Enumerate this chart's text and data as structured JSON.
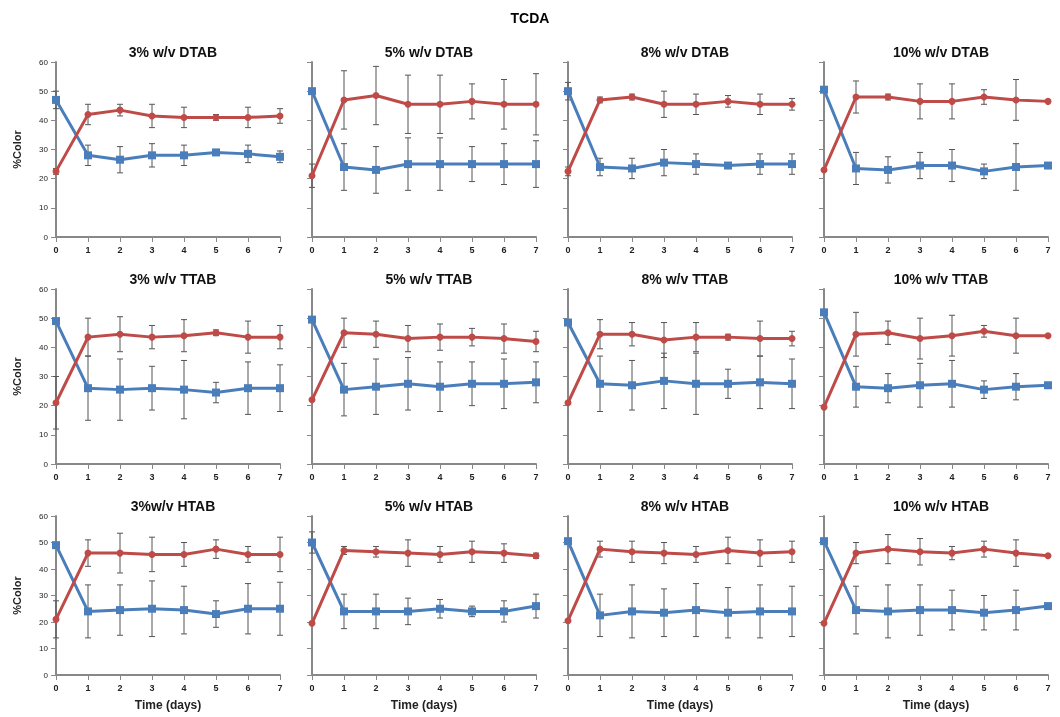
{
  "chart_data": [
    {
      "type": "other",
      "title": "TCDA"
    },
    {
      "type": "line",
      "title": "3% w/v DTAB",
      "ylabel": "%Color",
      "x": [
        0,
        1,
        2,
        3,
        4,
        5,
        6,
        7
      ],
      "xlim": [
        0,
        7
      ],
      "xticks": [
        0,
        1,
        2,
        3,
        4,
        5,
        6,
        7
      ],
      "ylim": [
        0,
        60
      ],
      "yticks": [
        0,
        10,
        20,
        30,
        40,
        50,
        60
      ],
      "series": [
        {
          "color": "#4a7ebb",
          "marker": "square",
          "values": [
            47,
            28,
            26.5,
            28,
            28,
            29,
            28.5,
            27.5
          ],
          "errors": [
            3,
            3.5,
            4.5,
            4,
            3.5,
            null,
            3,
            2
          ]
        },
        {
          "color": "#be4b48",
          "marker": "circle",
          "values": [
            22.5,
            42,
            43.5,
            41.5,
            41,
            41,
            41,
            41.5
          ],
          "errors": [
            1,
            3.5,
            2,
            4,
            3.5,
            1,
            3.5,
            2.5
          ]
        }
      ]
    },
    {
      "type": "line",
      "title": "5% w/v DTAB",
      "x": [
        0,
        1,
        2,
        3,
        4,
        5,
        6,
        7
      ],
      "xlim": [
        0,
        7
      ],
      "xticks": [
        0,
        1,
        2,
        3,
        4,
        5,
        6,
        7
      ],
      "ylim": [
        0,
        60
      ],
      "yticks": [
        0,
        10,
        20,
        30,
        40,
        50,
        60
      ],
      "tick_labels": "x",
      "series": [
        {
          "color": "#4a7ebb",
          "marker": "square",
          "values": [
            50,
            24,
            23,
            25,
            25,
            25,
            25,
            25
          ],
          "errors": [
            null,
            8,
            8,
            9,
            9,
            6,
            7,
            8
          ]
        },
        {
          "color": "#be4b48",
          "marker": "circle",
          "values": [
            21,
            47,
            48.5,
            45.5,
            45.5,
            46.5,
            45.5,
            45.5
          ],
          "errors": [
            4,
            10,
            10,
            10,
            10,
            6,
            8.5,
            10.5
          ]
        }
      ]
    },
    {
      "type": "line",
      "title": "8% w/v DTAB",
      "x": [
        0,
        1,
        2,
        3,
        4,
        5,
        6,
        7
      ],
      "xlim": [
        0,
        7
      ],
      "xticks": [
        0,
        1,
        2,
        3,
        4,
        5,
        6,
        7
      ],
      "ylim": [
        0,
        60
      ],
      "yticks": [
        0,
        10,
        20,
        30,
        40,
        50,
        60
      ],
      "tick_labels": "x",
      "series": [
        {
          "color": "#4a7ebb",
          "marker": "square",
          "values": [
            50,
            24,
            23.5,
            25.5,
            25,
            24.5,
            25,
            25
          ],
          "errors": [
            3,
            3,
            3.5,
            4.5,
            3.5,
            null,
            3.5,
            3.5
          ]
        },
        {
          "color": "#be4b48",
          "marker": "circle",
          "values": [
            22.5,
            47,
            48,
            45.5,
            45.5,
            46.5,
            45.5,
            45.5
          ],
          "errors": [
            1.5,
            1,
            1,
            4.5,
            3.5,
            2,
            3.5,
            2
          ]
        }
      ]
    },
    {
      "type": "line",
      "title": "10% w/v DTAB",
      "x": [
        0,
        1,
        2,
        3,
        4,
        5,
        6,
        7
      ],
      "xlim": [
        0,
        7
      ],
      "xticks": [
        0,
        1,
        2,
        3,
        4,
        5,
        6,
        7
      ],
      "ylim": [
        0,
        60
      ],
      "yticks": [
        0,
        10,
        20,
        30,
        40,
        50,
        60
      ],
      "tick_labels": "x",
      "series": [
        {
          "color": "#4a7ebb",
          "marker": "square",
          "values": [
            50.5,
            23.5,
            23,
            24.5,
            24.5,
            22.5,
            24,
            24.5
          ],
          "errors": [
            null,
            5.5,
            4.5,
            4.5,
            5.5,
            2.5,
            8,
            null
          ]
        },
        {
          "color": "#be4b48",
          "marker": "circle",
          "values": [
            23,
            48,
            48,
            46.5,
            46.5,
            48,
            47,
            46.5
          ],
          "errors": [
            null,
            5.5,
            1,
            6,
            6,
            2.5,
            7,
            null
          ]
        }
      ]
    },
    {
      "type": "line",
      "title": "3% w/v TTAB",
      "ylabel": "%Color",
      "x": [
        0,
        1,
        2,
        3,
        4,
        5,
        6,
        7
      ],
      "xlim": [
        0,
        7
      ],
      "xticks": [
        0,
        1,
        2,
        3,
        4,
        5,
        6,
        7
      ],
      "ylim": [
        0,
        60
      ],
      "yticks": [
        0,
        10,
        20,
        30,
        40,
        50,
        60
      ],
      "series": [
        {
          "color": "#4a7ebb",
          "marker": "square",
          "values": [
            49,
            26,
            25.5,
            26,
            25.5,
            24.5,
            26,
            26
          ],
          "errors": [
            null,
            11,
            10.5,
            7.5,
            10,
            3.5,
            9,
            8
          ]
        },
        {
          "color": "#be4b48",
          "marker": "circle",
          "values": [
            21,
            43.5,
            44.5,
            43.5,
            44,
            45,
            43.5,
            43.5
          ],
          "errors": [
            9,
            6.5,
            6,
            4,
            5.5,
            1,
            5.5,
            4
          ]
        }
      ]
    },
    {
      "type": "line",
      "title": "5% w/v TTAB",
      "x": [
        0,
        1,
        2,
        3,
        4,
        5,
        6,
        7
      ],
      "xlim": [
        0,
        7
      ],
      "xticks": [
        0,
        1,
        2,
        3,
        4,
        5,
        6,
        7
      ],
      "ylim": [
        0,
        60
      ],
      "yticks": [
        0,
        10,
        20,
        30,
        40,
        50,
        60
      ],
      "tick_labels": "x",
      "series": [
        {
          "color": "#4a7ebb",
          "marker": "square",
          "values": [
            49.5,
            25.5,
            26.5,
            27.5,
            26.5,
            27.5,
            27.5,
            28
          ],
          "errors": [
            null,
            9,
            9.5,
            9,
            8.5,
            7.5,
            8.5,
            7
          ]
        },
        {
          "color": "#be4b48",
          "marker": "circle",
          "values": [
            22,
            45,
            44.5,
            43,
            43.5,
            43.5,
            43,
            42
          ],
          "errors": [
            null,
            5,
            4.5,
            4.5,
            4.5,
            3,
            5,
            3.5
          ]
        }
      ]
    },
    {
      "type": "line",
      "title": "8% w/v TTAB",
      "x": [
        0,
        1,
        2,
        3,
        4,
        5,
        6,
        7
      ],
      "xlim": [
        0,
        7
      ],
      "xticks": [
        0,
        1,
        2,
        3,
        4,
        5,
        6,
        7
      ],
      "ylim": [
        0,
        60
      ],
      "yticks": [
        0,
        10,
        20,
        30,
        40,
        50,
        60
      ],
      "tick_labels": "x",
      "series": [
        {
          "color": "#4a7ebb",
          "marker": "square",
          "values": [
            48.5,
            27.5,
            27,
            28.5,
            27.5,
            27.5,
            28,
            27.5
          ],
          "errors": [
            null,
            9.5,
            8.5,
            9.5,
            10.5,
            5,
            9,
            8.5
          ]
        },
        {
          "color": "#be4b48",
          "marker": "circle",
          "values": [
            21,
            44.5,
            44.5,
            42.5,
            43.5,
            43.5,
            43,
            43
          ],
          "errors": [
            null,
            5,
            4,
            6,
            5,
            1,
            6,
            2.5
          ]
        }
      ]
    },
    {
      "type": "line",
      "title": "10% w/v TTAB",
      "x": [
        0,
        1,
        2,
        3,
        4,
        5,
        6,
        7
      ],
      "xlim": [
        0,
        7
      ],
      "xticks": [
        0,
        1,
        2,
        3,
        4,
        5,
        6,
        7
      ],
      "ylim": [
        0,
        60
      ],
      "yticks": [
        0,
        10,
        20,
        30,
        40,
        50,
        60
      ],
      "tick_labels": "x",
      "series": [
        {
          "color": "#4a7ebb",
          "marker": "square",
          "values": [
            52,
            26.5,
            26,
            27,
            27.5,
            25.5,
            26.5,
            27
          ],
          "errors": [
            null,
            7,
            5,
            7.5,
            8,
            3,
            4.5,
            null
          ]
        },
        {
          "color": "#be4b48",
          "marker": "circle",
          "values": [
            19.5,
            44.5,
            45,
            43,
            44,
            45.5,
            44,
            44
          ],
          "errors": [
            null,
            7.5,
            4,
            7,
            7,
            2,
            6,
            null
          ]
        }
      ]
    },
    {
      "type": "line",
      "title": "3%w/v HTAB",
      "xlabel": "Time (days)",
      "ylabel": "%Color",
      "x": [
        0,
        1,
        2,
        3,
        4,
        5,
        6,
        7
      ],
      "xlim": [
        0,
        7
      ],
      "xticks": [
        0,
        1,
        2,
        3,
        4,
        5,
        6,
        7
      ],
      "ylim": [
        0,
        60
      ],
      "yticks": [
        0,
        10,
        20,
        30,
        40,
        50,
        60
      ],
      "series": [
        {
          "color": "#4a7ebb",
          "marker": "square",
          "values": [
            49,
            24,
            24.5,
            25,
            24.5,
            23,
            25,
            25
          ],
          "errors": [
            null,
            10,
            9.5,
            10.5,
            9,
            5,
            9.5,
            10
          ]
        },
        {
          "color": "#be4b48",
          "marker": "circle",
          "values": [
            21,
            46,
            46,
            45.5,
            45.5,
            47.5,
            45.5,
            45.5
          ],
          "errors": [
            7,
            5,
            7.5,
            6.5,
            4.5,
            3.5,
            3,
            6.5
          ]
        }
      ]
    },
    {
      "type": "line",
      "title": "5% w/v HTAB",
      "xlabel": "Time (days)",
      "x": [
        0,
        1,
        2,
        3,
        4,
        5,
        6,
        7
      ],
      "xlim": [
        0,
        7
      ],
      "xticks": [
        0,
        1,
        2,
        3,
        4,
        5,
        6,
        7
      ],
      "ylim": [
        0,
        60
      ],
      "yticks": [
        0,
        10,
        20,
        30,
        40,
        50,
        60
      ],
      "tick_labels": "x",
      "series": [
        {
          "color": "#4a7ebb",
          "marker": "square",
          "values": [
            50,
            24,
            24,
            24,
            25,
            24,
            24,
            26
          ],
          "errors": [
            4,
            6.5,
            6.5,
            5,
            3.5,
            2,
            4,
            4.5
          ]
        },
        {
          "color": "#be4b48",
          "marker": "circle",
          "values": [
            19.5,
            47,
            46.5,
            46,
            45.5,
            46.5,
            46,
            45
          ],
          "errors": [
            null,
            1.5,
            2,
            5,
            3,
            4,
            3.5,
            1
          ]
        }
      ]
    },
    {
      "type": "line",
      "title": "8% w/v HTAB",
      "xlabel": "Time (days)",
      "x": [
        0,
        1,
        2,
        3,
        4,
        5,
        6,
        7
      ],
      "xlim": [
        0,
        7
      ],
      "xticks": [
        0,
        1,
        2,
        3,
        4,
        5,
        6,
        7
      ],
      "ylim": [
        0,
        60
      ],
      "yticks": [
        0,
        10,
        20,
        30,
        40,
        50,
        60
      ],
      "tick_labels": "x",
      "series": [
        {
          "color": "#4a7ebb",
          "marker": "square",
          "values": [
            50.5,
            22.5,
            24,
            23.5,
            24.5,
            23.5,
            24,
            24
          ],
          "errors": [
            null,
            8,
            10,
            9,
            10,
            9.5,
            10,
            9.5
          ]
        },
        {
          "color": "#be4b48",
          "marker": "circle",
          "values": [
            20.5,
            47.5,
            46.5,
            46,
            45.5,
            47,
            46,
            46.5
          ],
          "errors": [
            null,
            3,
            4,
            4,
            3,
            5,
            5,
            4
          ]
        }
      ]
    },
    {
      "type": "line",
      "title": "10% w/v HTAB",
      "xlabel": "Time (days)",
      "x": [
        0,
        1,
        2,
        3,
        4,
        5,
        6,
        7
      ],
      "xlim": [
        0,
        7
      ],
      "xticks": [
        0,
        1,
        2,
        3,
        4,
        5,
        6,
        7
      ],
      "ylim": [
        0,
        60
      ],
      "yticks": [
        0,
        10,
        20,
        30,
        40,
        50,
        60
      ],
      "tick_labels": "x",
      "series": [
        {
          "color": "#4a7ebb",
          "marker": "square",
          "values": [
            50.5,
            24.5,
            24,
            24.5,
            24.5,
            23.5,
            24.5,
            26
          ],
          "errors": [
            null,
            9,
            10,
            9.5,
            7.5,
            6.5,
            7.5,
            null
          ]
        },
        {
          "color": "#be4b48",
          "marker": "circle",
          "values": [
            19.5,
            46,
            47.5,
            46.5,
            46,
            47.5,
            46,
            45
          ],
          "errors": [
            null,
            4,
            5.5,
            5,
            2.5,
            3,
            5,
            null
          ]
        }
      ]
    }
  ]
}
